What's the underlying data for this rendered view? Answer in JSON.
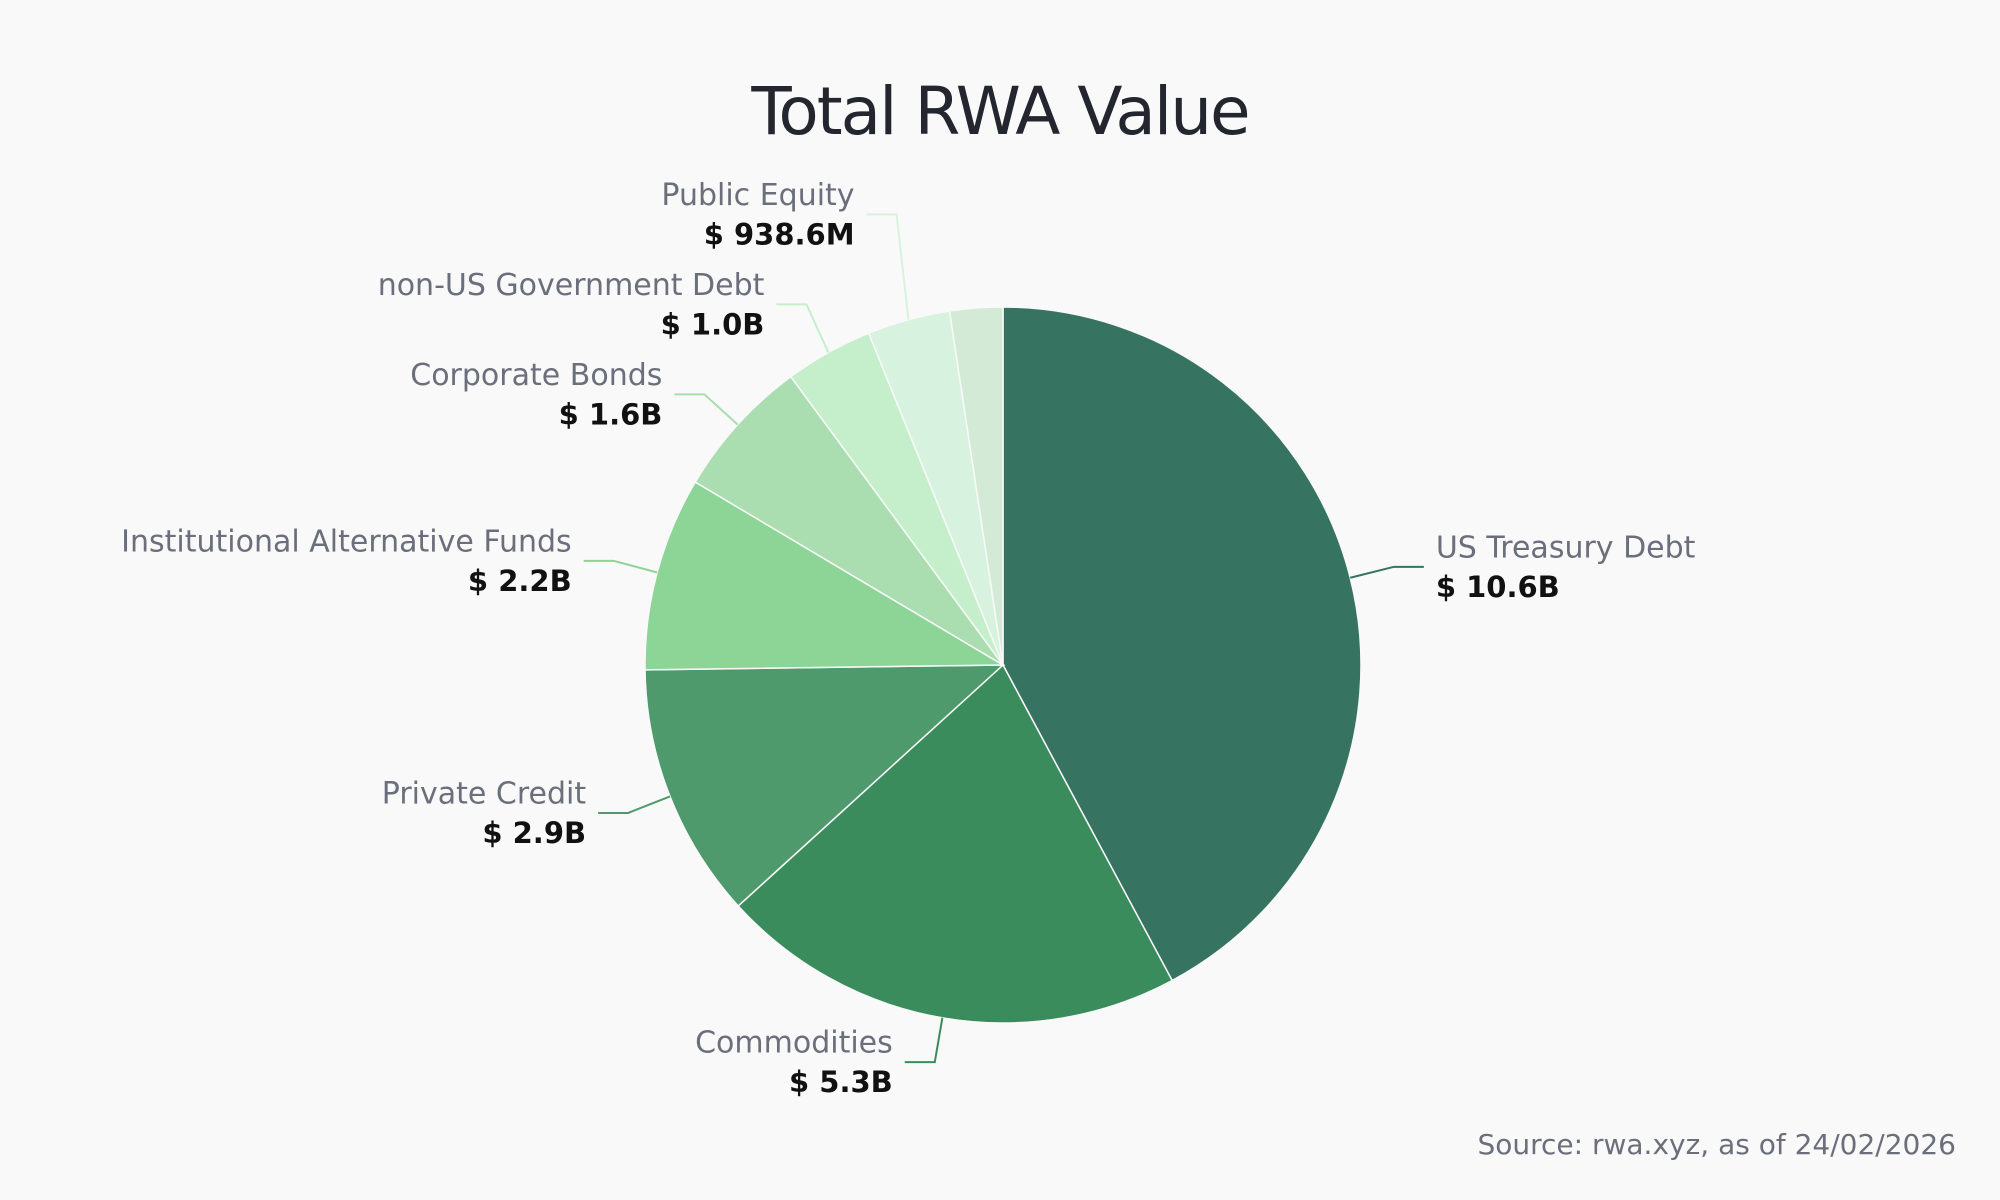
{
  "chart_data": {
    "type": "pie",
    "title": "Total RWA Value",
    "categories": [
      "US Treasury Debt",
      "Commodities",
      "Private Credit",
      "Institutional Alternative Funds",
      "Corporate Bonds",
      "non-US Government Debt",
      "Public Equity",
      null
    ],
    "values": [
      10600000000,
      5300000000,
      2900000000,
      2200000000,
      1600000000,
      1000000000,
      938600000,
      600000000
    ],
    "value_labels": [
      "$ 10.6B",
      "$ 5.3B",
      "$ 2.9B",
      "$ 2.2B",
      "$ 1.6B",
      "$ 1.0B",
      "$ 938.6M",
      null
    ],
    "colors": [
      "#367361",
      "#3a8c5c",
      "#4e9a6d",
      "#8dd497",
      "#aaddb0",
      "#c5efcb",
      "#d8f2e0",
      "#d3ebd6"
    ],
    "source": "Source: rwa.xyz, as of 24/02/2026"
  }
}
